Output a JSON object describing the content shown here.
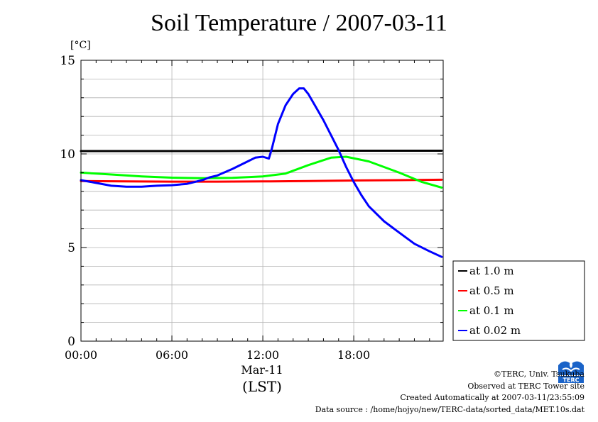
{
  "chart_data": {
    "type": "line",
    "title": "Soil Temperature / 2007-03-11",
    "ylabel": "[°C]",
    "xlabel": "(LST)",
    "date_label": "Mar-11",
    "xlim": [
      0,
      23.9
    ],
    "ylim": [
      0,
      15
    ],
    "grid": true,
    "legend_position": "right",
    "x_ticks": [
      {
        "value": 0,
        "label": "00:00"
      },
      {
        "value": 6,
        "label": "06:00"
      },
      {
        "value": 12,
        "label": "12:00"
      },
      {
        "value": 18,
        "label": "18:00"
      }
    ],
    "y_ticks": [
      {
        "value": 0,
        "label": "0"
      },
      {
        "value": 5,
        "label": "5"
      },
      {
        "value": 10,
        "label": "10"
      },
      {
        "value": 15,
        "label": "15"
      }
    ],
    "series": [
      {
        "name": "at 1.0 m",
        "color": "#000000",
        "x": [
          0,
          3,
          6,
          9,
          12,
          15,
          18,
          21,
          23.8
        ],
        "y": [
          10.15,
          10.15,
          10.15,
          10.15,
          10.16,
          10.17,
          10.17,
          10.17,
          10.17
        ]
      },
      {
        "name": "at 0.5 m",
        "color": "#ff0000",
        "x": [
          0,
          3,
          6,
          9,
          12,
          15,
          18,
          21,
          23.8
        ],
        "y": [
          8.55,
          8.53,
          8.52,
          8.52,
          8.53,
          8.55,
          8.58,
          8.6,
          8.62
        ]
      },
      {
        "name": "at 0.1 m",
        "color": "#00ff00",
        "x": [
          0,
          2,
          4,
          6,
          8,
          10,
          12,
          13.5,
          15,
          16.5,
          17.5,
          19,
          21,
          22.5,
          23.8
        ],
        "y": [
          9.0,
          8.9,
          8.8,
          8.73,
          8.7,
          8.72,
          8.8,
          8.95,
          9.4,
          9.8,
          9.85,
          9.6,
          9.0,
          8.5,
          8.2
        ]
      },
      {
        "name": "at 0.02 m",
        "color": "#0000ff",
        "x": [
          0,
          1,
          2,
          3,
          4,
          5,
          6,
          7,
          8,
          8.5,
          9,
          10,
          11,
          11.5,
          12,
          12.4,
          12.6,
          13,
          13.5,
          14,
          14.4,
          14.7,
          15,
          15.5,
          16,
          16.5,
          17,
          17.5,
          18,
          18.5,
          19,
          20,
          21,
          22,
          23,
          23.8
        ],
        "y": [
          8.6,
          8.45,
          8.3,
          8.25,
          8.25,
          8.3,
          8.33,
          8.4,
          8.6,
          8.75,
          8.85,
          9.2,
          9.6,
          9.8,
          9.85,
          9.75,
          10.3,
          11.6,
          12.6,
          13.2,
          13.5,
          13.5,
          13.2,
          12.5,
          11.8,
          11.0,
          10.2,
          9.3,
          8.5,
          7.8,
          7.2,
          6.4,
          5.8,
          5.2,
          4.8,
          4.5
        ]
      }
    ]
  },
  "credits": {
    "copyright": "©TERC, Univ. Tsukuba",
    "observed": "Observed at TERC Tower site",
    "created": "Created Automatically at 2007-03-11/23:55:09",
    "source": "Data source : /home/hojyo/new/TERC-data/sorted_data/MET.10s.dat",
    "logo_text": "TERC"
  }
}
